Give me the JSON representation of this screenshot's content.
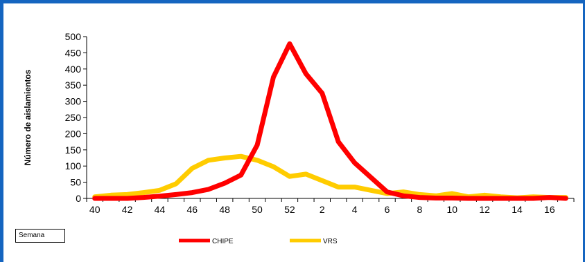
{
  "chart_data": {
    "type": "line",
    "ylabel": "Número de aislamientos",
    "xlabel": "Semana",
    "ylim": [
      0,
      500
    ],
    "yticks": [
      0,
      50,
      100,
      150,
      200,
      250,
      300,
      350,
      400,
      450,
      500
    ],
    "x": [
      "40",
      "41",
      "42",
      "43",
      "44",
      "45",
      "46",
      "47",
      "48",
      "49",
      "50",
      "51",
      "52",
      "1",
      "2",
      "3",
      "4",
      "5",
      "6",
      "7",
      "8",
      "9",
      "10",
      "11",
      "12",
      "13",
      "14",
      "15",
      "16",
      "17"
    ],
    "xtick_labels": [
      "40",
      "42",
      "44",
      "46",
      "48",
      "50",
      "52",
      "2",
      "4",
      "6",
      "8",
      "10",
      "12",
      "14",
      "16"
    ],
    "series": [
      {
        "name": "CHIPE",
        "color": "#ff0000",
        "values": [
          0,
          0,
          0,
          3,
          7,
          12,
          18,
          28,
          47,
          72,
          165,
          375,
          478,
          385,
          325,
          175,
          110,
          65,
          20,
          8,
          3,
          1,
          1,
          0,
          0,
          0,
          0,
          0,
          3,
          0
        ]
      },
      {
        "name": "VRS",
        "color": "#ffcc00",
        "values": [
          5,
          10,
          12,
          18,
          25,
          45,
          93,
          118,
          125,
          130,
          118,
          98,
          68,
          75,
          55,
          35,
          35,
          25,
          15,
          20,
          12,
          8,
          15,
          5,
          10,
          5,
          2,
          5,
          3,
          3
        ]
      }
    ],
    "grid": false,
    "legend": "bottom"
  }
}
